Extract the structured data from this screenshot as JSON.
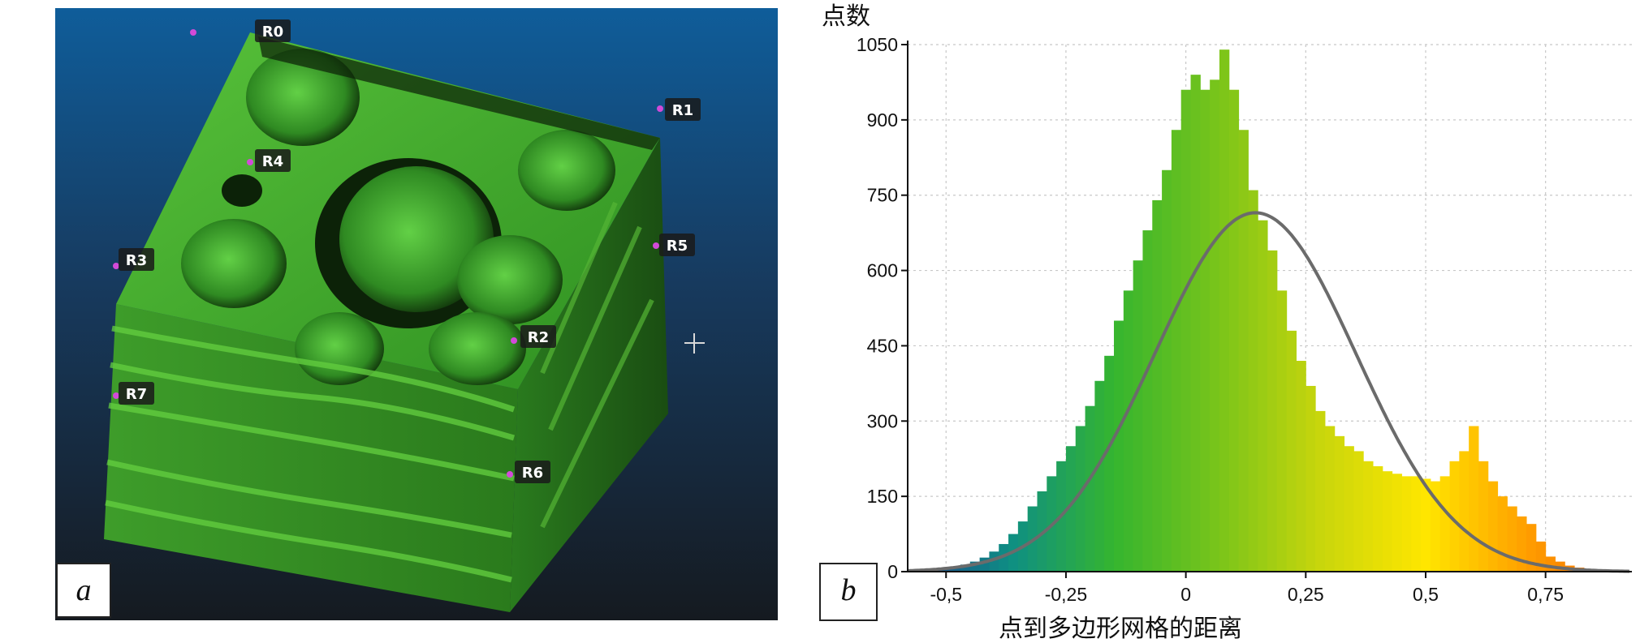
{
  "panel_a": {
    "letter": "a",
    "markers": [
      {
        "id": "R0",
        "label": "R0"
      },
      {
        "id": "R1",
        "label": "R1"
      },
      {
        "id": "R2",
        "label": "R2"
      },
      {
        "id": "R3",
        "label": "R3"
      },
      {
        "id": "R4",
        "label": "R4"
      },
      {
        "id": "R5",
        "label": "R5"
      },
      {
        "id": "R6",
        "label": "R6"
      },
      {
        "id": "R7",
        "label": "R7"
      }
    ]
  },
  "panel_b": {
    "letter": "b"
  },
  "chart_data": {
    "type": "bar",
    "xlabel": "点到多边形网格的距离",
    "ylabel": "点数",
    "xlim": [
      -0.58,
      0.93
    ],
    "ylim": [
      0,
      1050
    ],
    "xticks": [
      -0.5,
      -0.25,
      0,
      0.25,
      0.5,
      0.75
    ],
    "xtick_labels": [
      "-0,5",
      "-0,25",
      "0",
      "0,25",
      "0,5",
      "0,75"
    ],
    "yticks": [
      0,
      150,
      300,
      450,
      600,
      750,
      900,
      1050
    ],
    "ytick_labels": [
      "0",
      "150",
      "300",
      "450",
      "600",
      "750",
      "900",
      "1050"
    ],
    "grid": true,
    "histogram": {
      "bin_centers": [
        -0.56,
        -0.54,
        -0.52,
        -0.5,
        -0.48,
        -0.46,
        -0.44,
        -0.42,
        -0.4,
        -0.38,
        -0.36,
        -0.34,
        -0.32,
        -0.3,
        -0.28,
        -0.26,
        -0.24,
        -0.22,
        -0.2,
        -0.18,
        -0.16,
        -0.14,
        -0.12,
        -0.1,
        -0.08,
        -0.06,
        -0.04,
        -0.02,
        0.0,
        0.02,
        0.04,
        0.06,
        0.08,
        0.1,
        0.12,
        0.14,
        0.16,
        0.18,
        0.2,
        0.22,
        0.24,
        0.26,
        0.28,
        0.3,
        0.32,
        0.34,
        0.36,
        0.38,
        0.4,
        0.42,
        0.44,
        0.46,
        0.48,
        0.5,
        0.52,
        0.54,
        0.56,
        0.58,
        0.6,
        0.62,
        0.64,
        0.66,
        0.68,
        0.7,
        0.72,
        0.74,
        0.76,
        0.78,
        0.8,
        0.82,
        0.84,
        0.86,
        0.88,
        0.9
      ],
      "counts": [
        2,
        3,
        5,
        7,
        10,
        14,
        20,
        28,
        40,
        55,
        75,
        100,
        130,
        160,
        190,
        220,
        250,
        290,
        330,
        380,
        430,
        500,
        560,
        620,
        680,
        740,
        800,
        880,
        960,
        990,
        960,
        980,
        1040,
        960,
        880,
        760,
        700,
        640,
        560,
        480,
        420,
        370,
        320,
        290,
        270,
        250,
        240,
        220,
        210,
        200,
        195,
        190,
        190,
        185,
        180,
        190,
        220,
        240,
        290,
        220,
        180,
        150,
        130,
        110,
        95,
        60,
        30,
        20,
        12,
        8,
        5,
        3,
        2,
        1
      ]
    },
    "fit_curve": {
      "type": "normal",
      "peak": 715,
      "mean": 0.145,
      "sd": 0.21
    },
    "colors": [
      "#1f3f8f",
      "#0e8f83",
      "#35b52f",
      "#79c41a",
      "#c9d60c",
      "#ffe600",
      "#ff9d00",
      "#f06000"
    ],
    "curve_color": "#6b6b6b"
  }
}
